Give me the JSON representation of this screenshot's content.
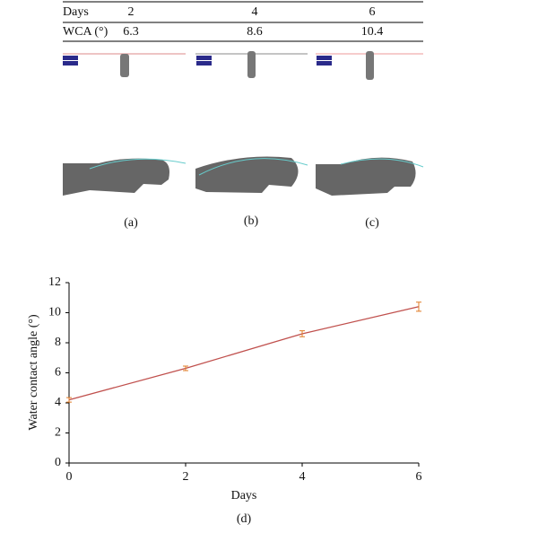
{
  "table": {
    "rows": [
      [
        "Days",
        "2",
        "4",
        "6"
      ],
      [
        "WCA (°)",
        "6.3",
        "8.6",
        "10.4"
      ]
    ]
  },
  "panels": [
    "(a)",
    "(b)",
    "(c)"
  ],
  "chart_data": {
    "type": "line",
    "caption": "(d)",
    "x_label": "Days",
    "y_label": "Water contact angle (°)",
    "x": [
      0,
      2,
      4,
      6
    ],
    "values": [
      4.2,
      6.3,
      8.6,
      10.4
    ],
    "errors": [
      0.15,
      0.15,
      0.2,
      0.3
    ],
    "color": "#c0504d",
    "error_color": "#e07b24",
    "xlim": [
      0,
      6
    ],
    "xticks": [
      0,
      2,
      4,
      6
    ],
    "ylim": [
      0,
      12
    ],
    "yticks": [
      0,
      2,
      4,
      6,
      8,
      10,
      12
    ]
  }
}
